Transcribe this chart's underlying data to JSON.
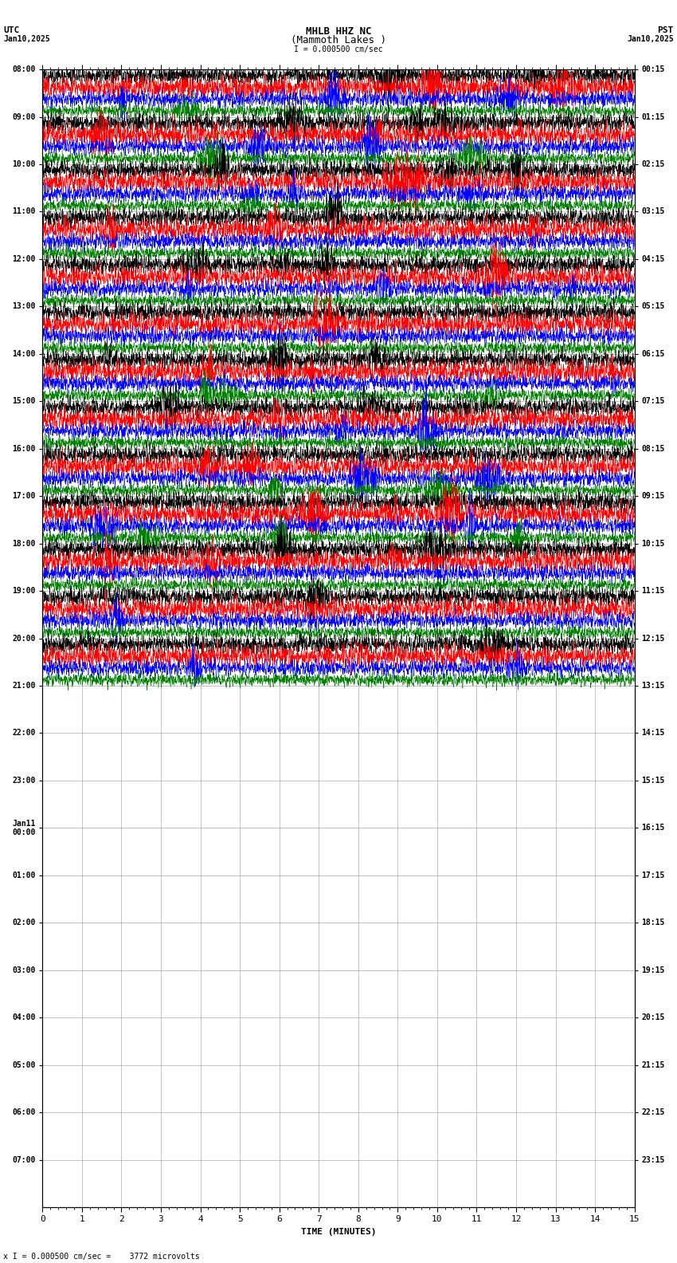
{
  "title_line1": "MHLB HHZ NC",
  "title_line2": "(Mammoth Lakes )",
  "scale_label": "I = 0.000500 cm/sec",
  "utc_label": "UTC",
  "pst_label": "PST",
  "date_left": "Jan10,2025",
  "date_right": "Jan10,2025",
  "footer_label": "x I = 0.000500 cm/sec =    3772 microvolts",
  "xlabel": "TIME (MINUTES)",
  "bg_color": "#ffffff",
  "grid_color": "#888888",
  "trace_colors": [
    "#000000",
    "#ff0000",
    "#0000ff",
    "#008000"
  ],
  "left_times_utc": [
    "08:00",
    "09:00",
    "10:00",
    "11:00",
    "12:00",
    "13:00",
    "14:00",
    "15:00",
    "16:00",
    "17:00",
    "18:00",
    "19:00",
    "20:00",
    "21:00",
    "22:00",
    "23:00",
    "Jan11\n00:00",
    "01:00",
    "02:00",
    "03:00",
    "04:00",
    "05:00",
    "06:00",
    "07:00"
  ],
  "right_times_pst": [
    "00:15",
    "01:15",
    "02:15",
    "03:15",
    "04:15",
    "05:15",
    "06:15",
    "07:15",
    "08:15",
    "09:15",
    "10:15",
    "11:15",
    "12:15",
    "13:15",
    "14:15",
    "15:15",
    "16:15",
    "17:15",
    "18:15",
    "19:15",
    "20:15",
    "21:15",
    "22:15",
    "23:15"
  ],
  "num_rows": 24,
  "traces_per_row": 4,
  "xmin": 0,
  "xmax": 15,
  "active_rows": 13,
  "font_family": "monospace",
  "font_size_ticks": 7,
  "font_size_title": 9,
  "font_size_xlabel": 8,
  "font_size_footer": 7
}
